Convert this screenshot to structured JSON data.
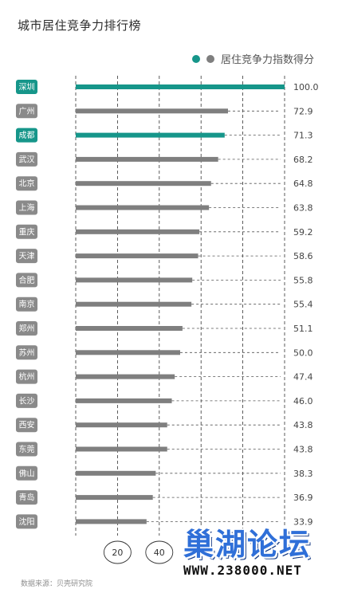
{
  "title": "城市居住竞争力排行榜",
  "legend": {
    "label": "居住竞争力指数得分",
    "highlight_color": "#16968a",
    "bar_color": "#7f7f7f"
  },
  "source": "数据来源：贝壳研究院",
  "watermark": {
    "text": "巢湖论坛",
    "url": "WWW.238000.NET"
  },
  "chart_data": {
    "type": "bar",
    "orientation": "horizontal",
    "title": "城市居住竞争力排行榜",
    "categories": [
      "深圳",
      "广州",
      "成都",
      "武汉",
      "北京",
      "上海",
      "重庆",
      "天津",
      "合肥",
      "南京",
      "郑州",
      "苏州",
      "杭州",
      "长沙",
      "西安",
      "东莞",
      "佛山",
      "青岛",
      "沈阳"
    ],
    "series": [
      {
        "name": "居住竞争力指数得分",
        "values": [
          100.0,
          72.9,
          71.3,
          68.2,
          64.8,
          63.8,
          59.2,
          58.6,
          55.8,
          55.4,
          51.1,
          50.0,
          47.4,
          46.0,
          43.8,
          43.8,
          38.3,
          36.9,
          33.9
        ],
        "value_labels": [
          "100.0",
          "72.9",
          "71.3",
          "68.2",
          "64.8",
          "63.8",
          "59.2",
          "58.6",
          "55.8",
          "55.4",
          "51.1",
          "50.0",
          "47.4",
          "46.0",
          "43.8",
          "43.8",
          "38.3",
          "36.9",
          "33.9"
        ]
      }
    ],
    "highlighted": [
      "深圳",
      "成都"
    ],
    "xlim": [
      0,
      100
    ],
    "x_tick_labels": [
      "20",
      "40"
    ],
    "grid": true
  }
}
